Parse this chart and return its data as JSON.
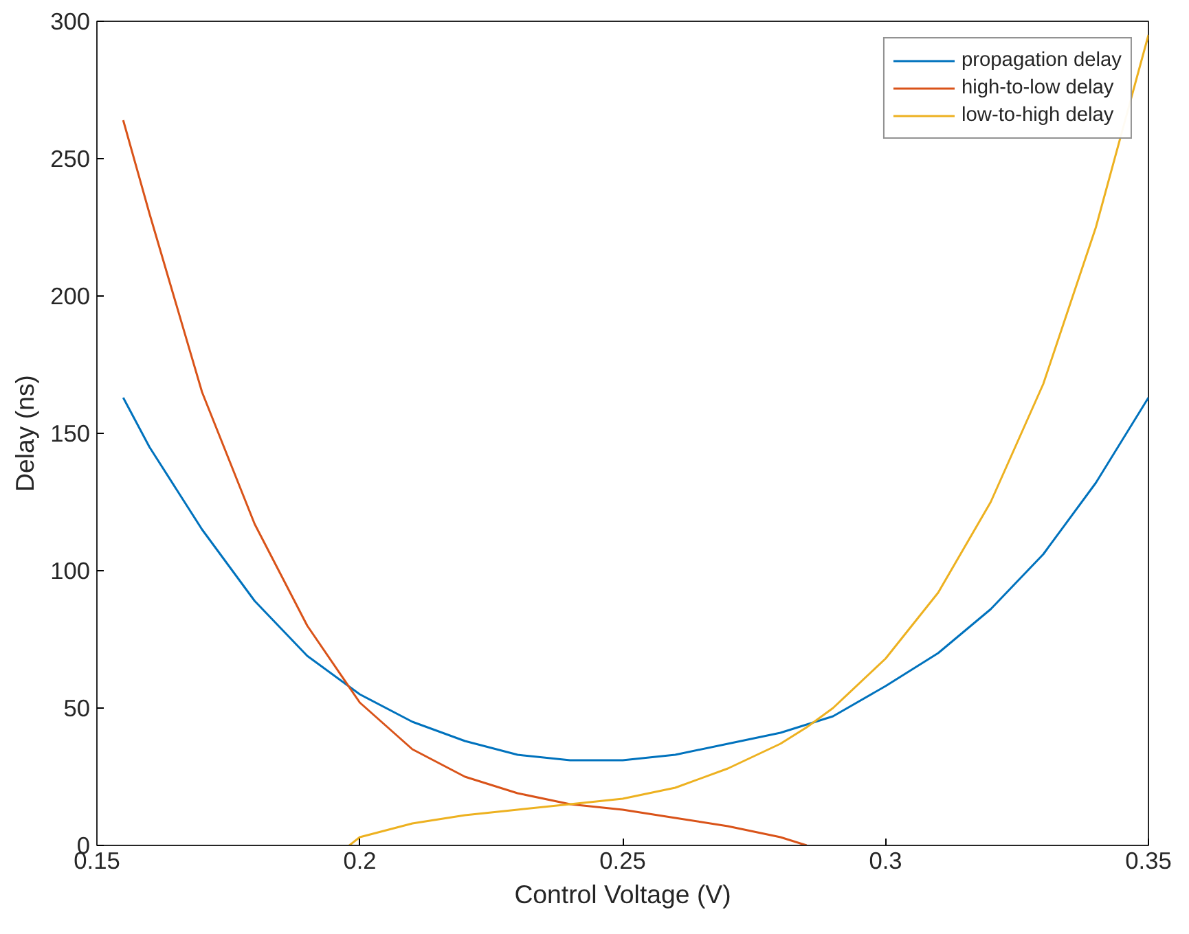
{
  "chart_data": {
    "type": "line",
    "xlabel": "Control Voltage (V)",
    "ylabel": "Delay (ns)",
    "xlim": [
      0.15,
      0.35
    ],
    "xticks": [
      0.15,
      0.2,
      0.25,
      0.3,
      0.35
    ],
    "ylim": [
      0,
      300
    ],
    "yticks": [
      0,
      50,
      100,
      150,
      200,
      250,
      300
    ],
    "grid": false,
    "legend": "top right",
    "marker": "none",
    "line_style": "solid",
    "series": [
      {
        "name": "propagation delay",
        "color": "#0072bd",
        "x": [
          0.155,
          0.16,
          0.17,
          0.18,
          0.19,
          0.2,
          0.21,
          0.22,
          0.23,
          0.24,
          0.25,
          0.26,
          0.27,
          0.28,
          0.29,
          0.3,
          0.31,
          0.32,
          0.33,
          0.34,
          0.35
        ],
        "values": [
          163,
          145,
          115,
          89,
          69,
          55,
          45,
          38,
          33,
          31,
          31,
          33,
          37,
          41,
          47,
          58,
          70,
          86,
          106,
          132,
          163
        ]
      },
      {
        "name": "high-to-low delay",
        "color": "#d95319",
        "x": [
          0.155,
          0.16,
          0.17,
          0.18,
          0.19,
          0.2,
          0.21,
          0.22,
          0.23,
          0.24,
          0.25,
          0.26,
          0.27,
          0.28,
          0.285
        ],
        "values": [
          264,
          230,
          165,
          117,
          80,
          52,
          35,
          25,
          19,
          15,
          13,
          10,
          7,
          3,
          0
        ]
      },
      {
        "name": "low-to-high delay",
        "color": "#edb120",
        "x": [
          0.198,
          0.2,
          0.21,
          0.22,
          0.23,
          0.24,
          0.25,
          0.26,
          0.27,
          0.28,
          0.285,
          0.29,
          0.3,
          0.31,
          0.32,
          0.33,
          0.34,
          0.35
        ],
        "values": [
          0,
          3,
          8,
          11,
          13,
          15,
          17,
          21,
          28,
          37,
          43,
          50,
          68,
          92,
          125,
          168,
          225,
          295
        ]
      }
    ]
  }
}
